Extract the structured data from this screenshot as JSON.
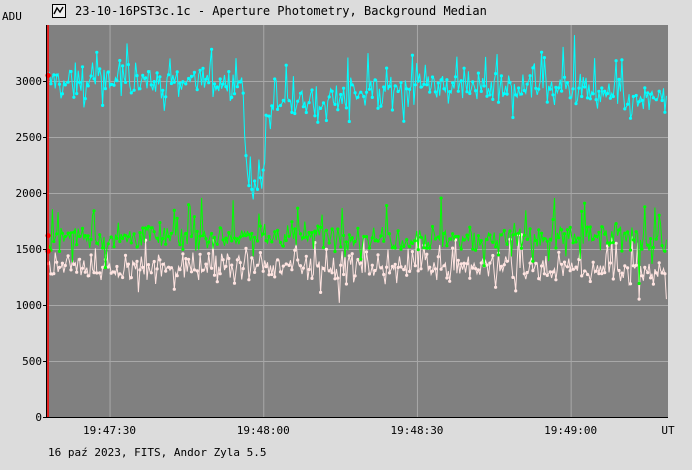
{
  "window": {
    "title": "23-10-16PST3c.1c - Aperture Photometry, Background Median",
    "app_icon": "chart-app-icon"
  },
  "footer": {
    "caption": "16 paź 2023, FITS, Andor Zyla 5.5"
  },
  "colors": {
    "plot_bg": "#808080",
    "grid": "#a8a8a8",
    "page_bg": "#dcdcdc",
    "cursor_line": "#ff0000"
  },
  "chart_data": {
    "type": "line",
    "title": "23-10-16PST3c.1c - Aperture Photometry, Background Median",
    "ylabel": "ADU",
    "xlabel": "UT",
    "ylim": [
      0,
      3500
    ],
    "yticks": [
      "0",
      "500",
      "1000",
      "1500",
      "2000",
      "2500",
      "3000"
    ],
    "ytick_values": [
      0,
      500,
      1000,
      1500,
      2000,
      2500,
      3000
    ],
    "xticks": [
      "19:47:30",
      "19:48:00",
      "19:48:30",
      "19:49:00"
    ],
    "xtick_seconds": [
      30,
      60,
      90,
      120
    ],
    "xlim_seconds": [
      17.6,
      139.0
    ],
    "x_unit_note": "seconds after 19:47:00 UT",
    "grid": true,
    "marker": "small dot",
    "series": [
      {
        "color": "#00ffff",
        "baseline": [
          [
            17.6,
            3000
          ],
          [
            45,
            3000
          ],
          [
            56,
            2980
          ],
          [
            57,
            2050
          ],
          [
            60,
            2100
          ],
          [
            61,
            2700
          ],
          [
            64,
            2800
          ],
          [
            90,
            2960
          ],
          [
            120,
            2930
          ],
          [
            133,
            2800
          ],
          [
            139,
            2880
          ]
        ],
        "noise": 130
      },
      {
        "color": "#00ff00",
        "baseline": [
          [
            17.6,
            1600
          ],
          [
            60,
            1620
          ],
          [
            100,
            1600
          ],
          [
            139,
            1590
          ]
        ],
        "noise": 110
      },
      {
        "color": "#ffe4e1",
        "baseline": [
          [
            17.6,
            1320
          ],
          [
            60,
            1340
          ],
          [
            100,
            1340
          ],
          [
            139,
            1300
          ]
        ],
        "noise": 110
      }
    ],
    "cursor_x_seconds": 18.0,
    "cursor_points": [
      {
        "series": 0,
        "value": 3050
      },
      {
        "series": 1,
        "value": 1620
      },
      {
        "series": 2,
        "value": 1480
      }
    ]
  }
}
